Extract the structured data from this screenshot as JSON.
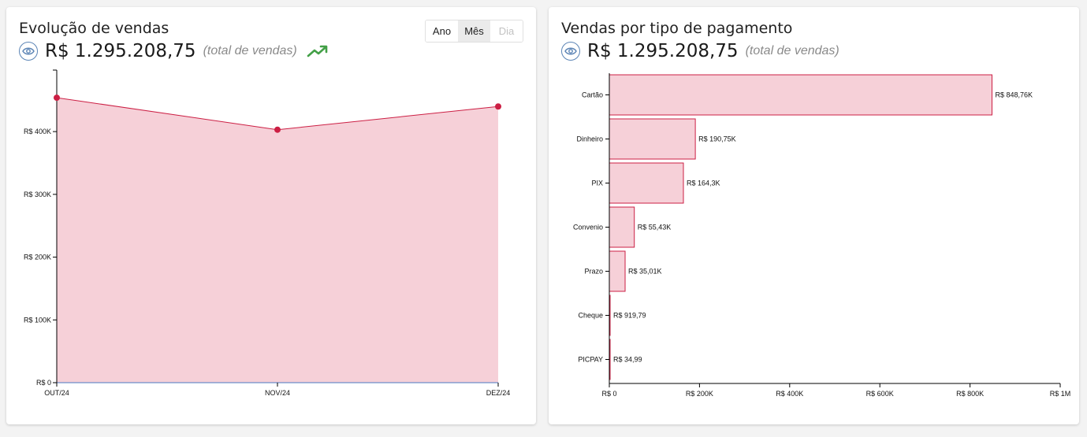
{
  "left_card": {
    "title": "Evolução de vendas",
    "total": "R$ 1.295.208,75",
    "total_caption": "(total de vendas)",
    "visibility_icon": "eye-icon",
    "trend_icon": "trending-up-icon",
    "period_options": [
      {
        "label": "Ano",
        "state": "normal"
      },
      {
        "label": "Mês",
        "state": "selected"
      },
      {
        "label": "Dia",
        "state": "disabled"
      }
    ]
  },
  "right_card": {
    "title": "Vendas por tipo de pagamento",
    "total": "R$ 1.295.208,75",
    "total_caption": "(total de vendas)",
    "visibility_icon": "eye-icon"
  },
  "colors": {
    "fill": "#f6d0d8",
    "stroke": "#cc1f44",
    "point": "#cc1f44",
    "baseline": "#4a78c2",
    "eye": "#5b84b5",
    "trend": "#43a047"
  },
  "chart_data": [
    {
      "type": "area",
      "categories": [
        "OUT/24",
        "NOV/24",
        "DEZ/24"
      ],
      "values": [
        454000,
        403000,
        440000
      ],
      "ylim": [
        0,
        498000
      ],
      "yticks": [
        0,
        100000,
        200000,
        300000,
        400000
      ],
      "ytick_labels": [
        "R$ 0",
        "R$ 100K",
        "R$ 200K",
        "R$ 300K",
        "R$ 400K"
      ],
      "xlabel": "",
      "ylabel": ""
    },
    {
      "type": "bar",
      "orientation": "horizontal",
      "categories": [
        "Cartão",
        "Dinheiro",
        "PIX",
        "Convenio",
        "Prazo",
        "Cheque",
        "PICPAY"
      ],
      "values": [
        848760,
        190750,
        164300,
        55430,
        35010,
        919.79,
        34.99
      ],
      "value_labels": [
        "R$ 848,76K",
        "R$ 190,75K",
        "R$ 164,3K",
        "R$ 55,43K",
        "R$ 35,01K",
        "R$ 919,79",
        "R$ 34,99"
      ],
      "xlim": [
        0,
        1000000
      ],
      "xticks": [
        0,
        200000,
        400000,
        600000,
        800000,
        1000000
      ],
      "xtick_labels": [
        "R$ 0",
        "R$ 200K",
        "R$ 400K",
        "R$ 600K",
        "R$ 800K",
        "R$ 1M"
      ],
      "xlabel": "",
      "ylabel": ""
    }
  ]
}
